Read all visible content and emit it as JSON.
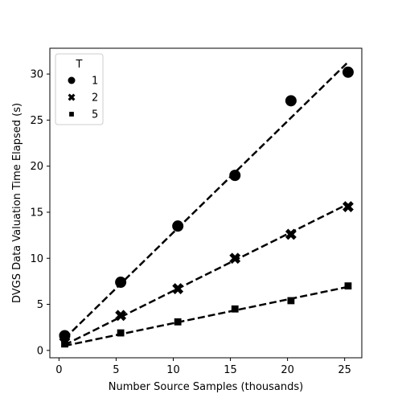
{
  "chart_data": {
    "type": "scatter",
    "xlabel": "Number Source Samples (thousands)",
    "ylabel": "DVGS Data Valuation Time Elapsed (s)",
    "xlim": [
      -0.8,
      26.5
    ],
    "ylim": [
      -0.8,
      32.8
    ],
    "x_ticks": [
      0,
      5,
      10,
      15,
      20,
      25
    ],
    "y_ticks": [
      0,
      5,
      10,
      15,
      20,
      25,
      30
    ],
    "grid": false,
    "legend": {
      "title": "T",
      "position": "top-left"
    },
    "series": [
      {
        "name": "1",
        "marker": "circle",
        "x": [
          0.5,
          5.4,
          10.4,
          15.4,
          20.3,
          25.3
        ],
        "y": [
          1.6,
          7.4,
          13.5,
          19.0,
          27.1,
          30.2
        ],
        "fit": {
          "x": [
            0.5,
            25.3
          ],
          "y": [
            1.3,
            31.3
          ]
        }
      },
      {
        "name": "2",
        "marker": "x",
        "x": [
          0.5,
          5.4,
          10.4,
          15.4,
          20.3,
          25.3
        ],
        "y": [
          1.5,
          3.8,
          6.7,
          10.0,
          12.6,
          15.6
        ],
        "fit": {
          "x": [
            0.5,
            25.3
          ],
          "y": [
            0.6,
            15.9
          ]
        }
      },
      {
        "name": "5",
        "marker": "square",
        "x": [
          0.5,
          5.4,
          10.4,
          15.4,
          20.3,
          25.3
        ],
        "y": [
          0.7,
          1.9,
          3.1,
          4.5,
          5.4,
          7.0
        ],
        "fit": {
          "x": [
            0.5,
            25.3
          ],
          "y": [
            0.5,
            6.9
          ]
        }
      }
    ],
    "colors": {
      "marker": "#000000",
      "axis": "#000000",
      "background": "#ffffff"
    }
  }
}
